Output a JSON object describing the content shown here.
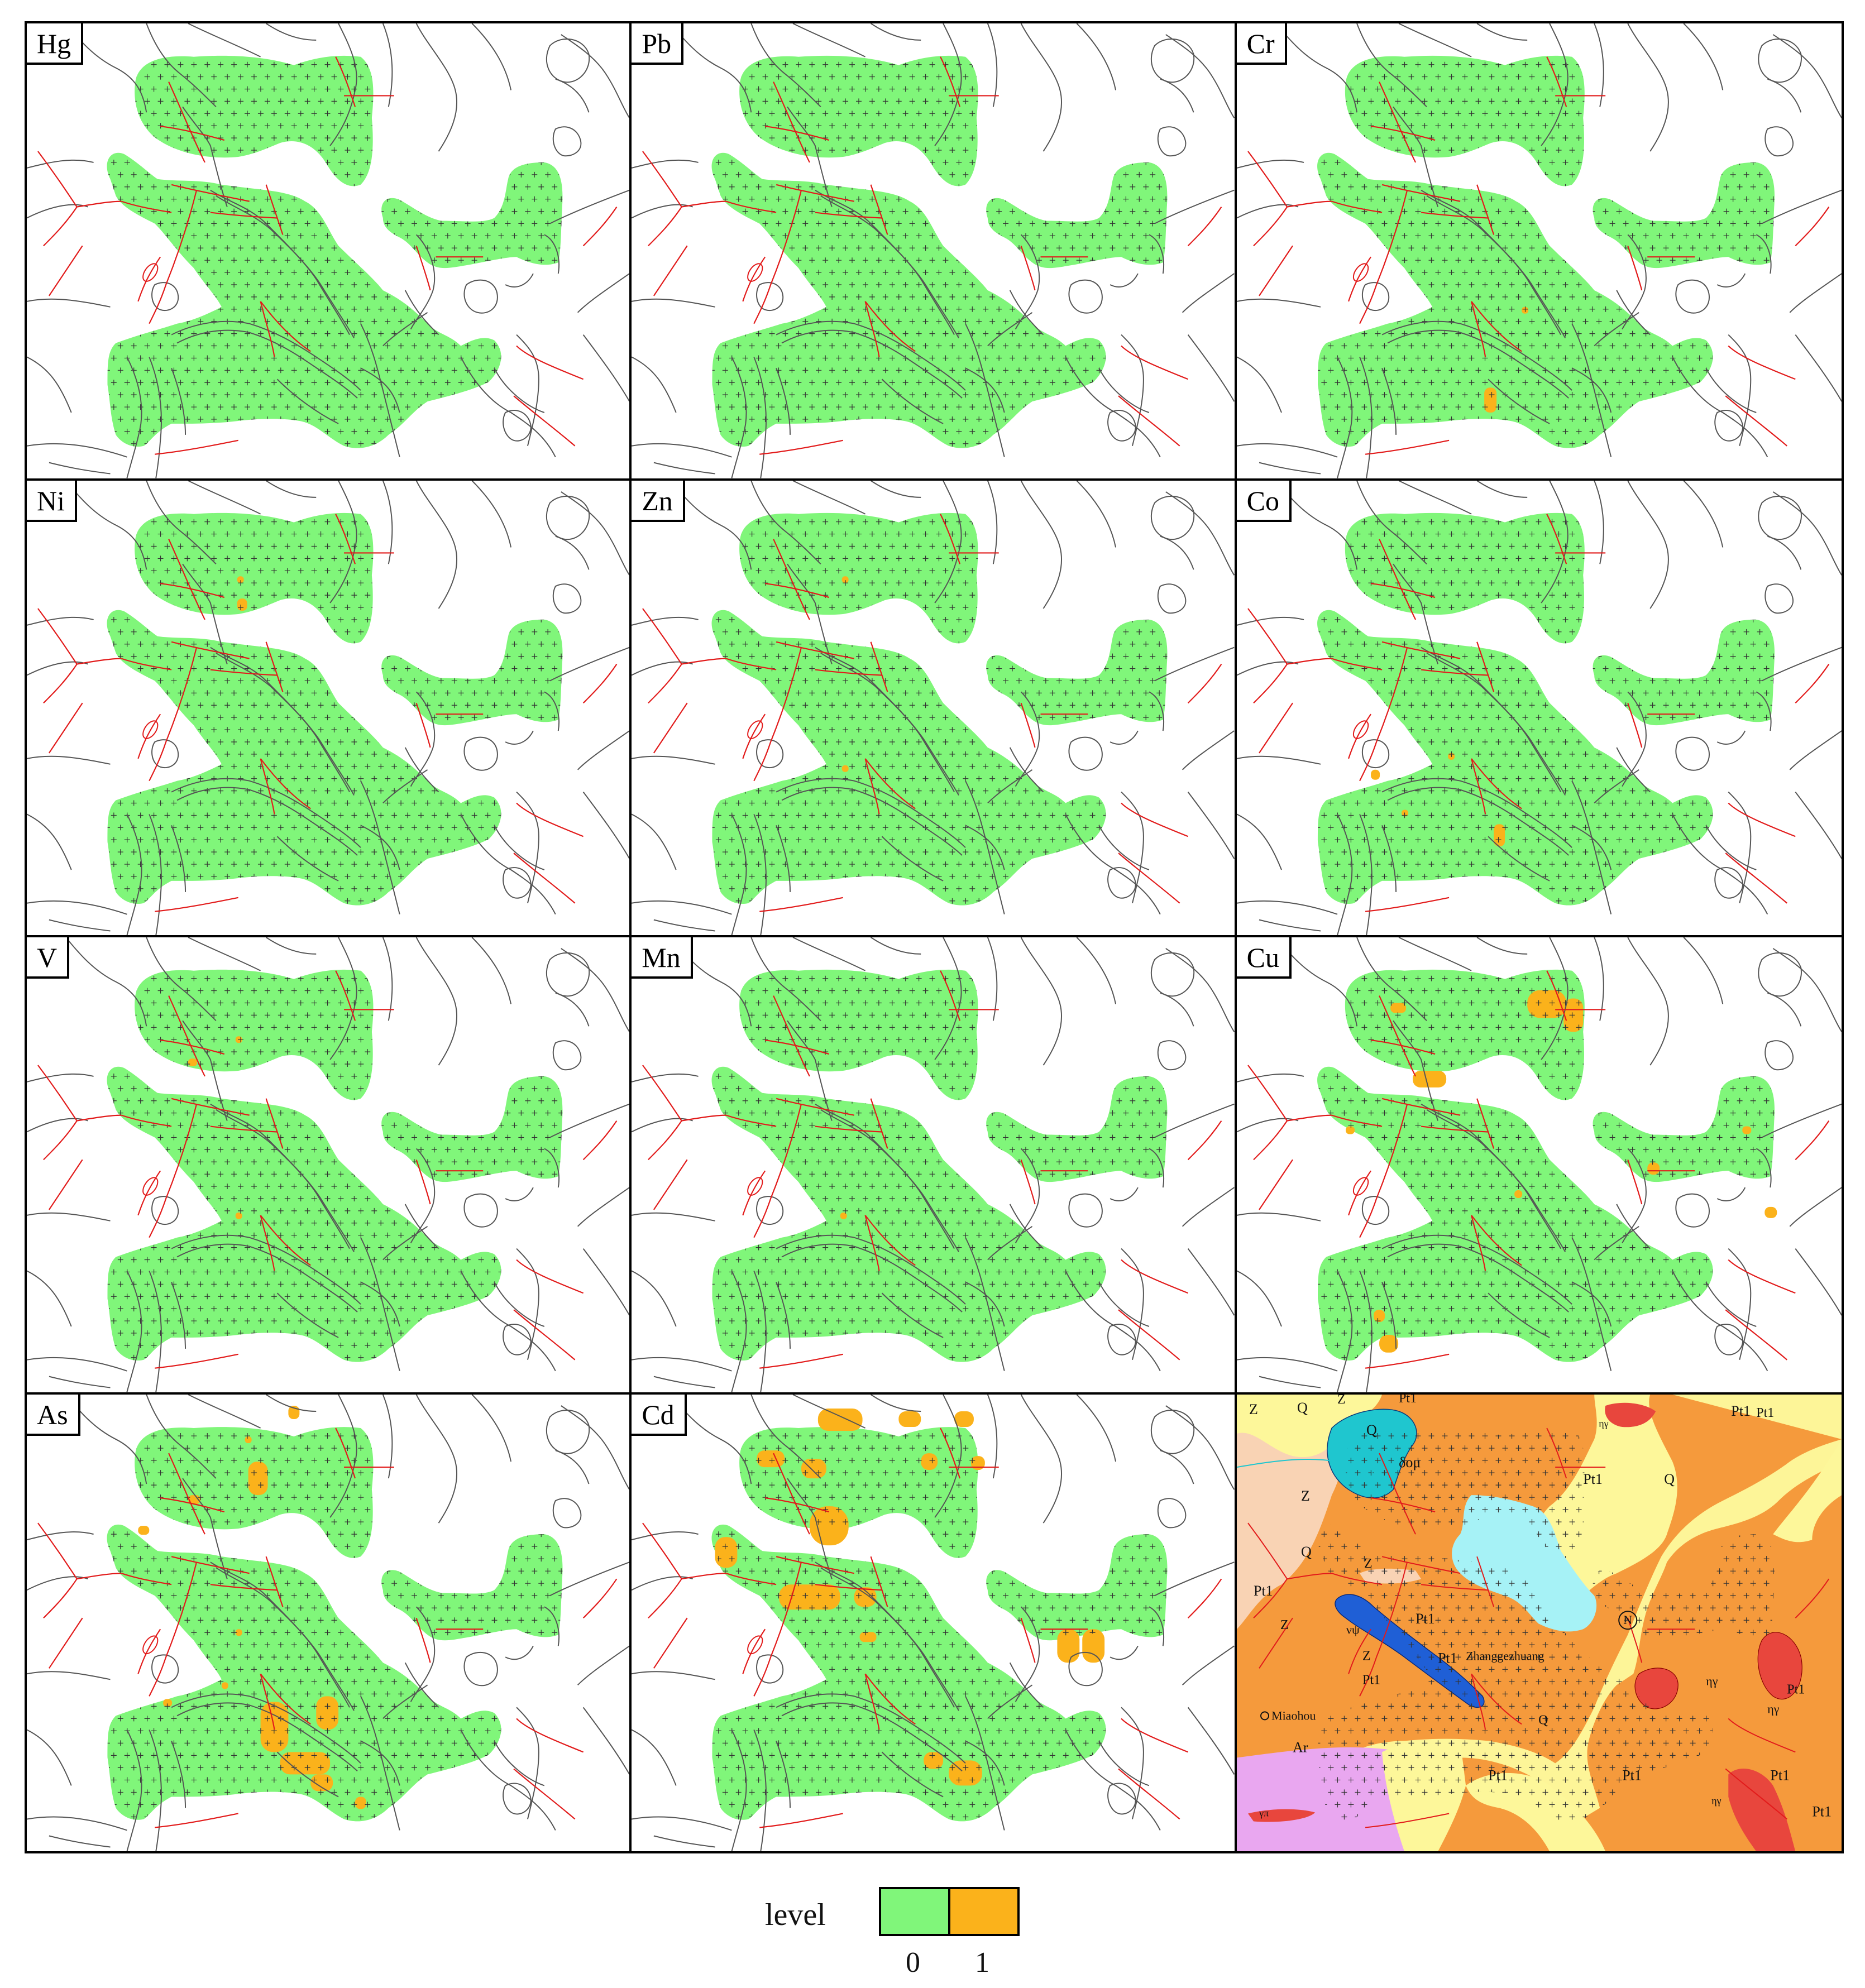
{
  "colors": {
    "level0": "#80f67a",
    "level1": "#fbb21b",
    "fault": "#e21b1b",
    "contour": "#555555",
    "Q": "#fdf79a",
    "Pt1": "#f59a3c",
    "Z": "#f9d3b4",
    "Ar": "#e9a7f0",
    "eta_gamma": "#e8463d",
    "delta_o_mu": "#1fc6cf",
    "v_psi": "#1f5fd6",
    "water": "#a6f2f6"
  },
  "panels": [
    {
      "label": "Hg",
      "anomalies": []
    },
    {
      "label": "Pb",
      "anomalies": []
    },
    {
      "label": "Cr",
      "anomalies": [
        [
          510,
          510,
          12,
          12
        ],
        [
          443,
          655,
          22,
          45
        ]
      ]
    },
    {
      "label": "Ni",
      "anomalies": [
        [
          378,
          172,
          12,
          12
        ],
        [
          378,
          212,
          18,
          22
        ]
      ]
    },
    {
      "label": "Zn",
      "anomalies": [
        [
          378,
          172,
          12,
          12
        ],
        [
          378,
          512,
          12,
          12
        ]
      ]
    },
    {
      "label": "Co",
      "anomalies": [
        [
          378,
          490,
          12,
          12
        ],
        [
          240,
          520,
          16,
          18
        ],
        [
          295,
          592,
          12,
          12
        ],
        [
          460,
          618,
          20,
          40
        ]
      ]
    },
    {
      "label": "V",
      "anomalies": [
        [
          375,
          178,
          12,
          12
        ],
        [
          290,
          218,
          16,
          14
        ],
        [
          375,
          495,
          12,
          12
        ]
      ]
    },
    {
      "label": "Mn",
      "anomalies": [
        [
          375,
          495,
          12,
          12
        ]
      ]
    },
    {
      "label": "Cu",
      "anomalies": [
        [
          275,
          118,
          28,
          18
        ],
        [
          520,
          95,
          70,
          50
        ],
        [
          585,
          110,
          35,
          60
        ],
        [
          315,
          240,
          60,
          30
        ],
        [
          195,
          340,
          16,
          14
        ],
        [
          905,
          340,
          16,
          14
        ],
        [
          735,
          405,
          22,
          22
        ],
        [
          497,
          455,
          14,
          14
        ],
        [
          945,
          485,
          22,
          20
        ],
        [
          245,
          670,
          20,
          22
        ],
        [
          255,
          715,
          34,
          32
        ]
      ]
    },
    {
      "label": "As",
      "anomalies": [
        [
          470,
          20,
          20,
          24
        ],
        [
          392,
          75,
          12,
          12
        ],
        [
          398,
          120,
          35,
          60
        ],
        [
          290,
          180,
          22,
          16
        ],
        [
          200,
          235,
          20,
          16
        ],
        [
          375,
          420,
          12,
          12
        ],
        [
          350,
          515,
          12,
          12
        ],
        [
          245,
          545,
          16,
          14
        ],
        [
          420,
          550,
          50,
          90
        ],
        [
          520,
          540,
          40,
          60
        ],
        [
          455,
          640,
          90,
          40
        ],
        [
          510,
          680,
          40,
          30
        ],
        [
          590,
          720,
          20,
          22
        ]
      ]
    },
    {
      "label": "Cd",
      "anomalies": [
        [
          335,
          25,
          80,
          40
        ],
        [
          480,
          30,
          40,
          28
        ],
        [
          580,
          30,
          35,
          28
        ],
        [
          225,
          100,
          50,
          30
        ],
        [
          305,
          115,
          45,
          35
        ],
        [
          520,
          105,
          30,
          30
        ],
        [
          610,
          110,
          25,
          25
        ],
        [
          320,
          200,
          70,
          70
        ],
        [
          150,
          255,
          40,
          55
        ],
        [
          265,
          340,
          110,
          45
        ],
        [
          400,
          345,
          40,
          35
        ],
        [
          410,
          425,
          30,
          18
        ],
        [
          765,
          420,
          40,
          60
        ],
        [
          810,
          420,
          40,
          60
        ],
        [
          525,
          640,
          35,
          30
        ],
        [
          570,
          655,
          60,
          45
        ]
      ]
    },
    {
      "label": "",
      "anomalies": []
    }
  ],
  "geology": {
    "labels": [
      "Z",
      "Q",
      "Z",
      "Pt1",
      "Pt1",
      "ηγ",
      "Pt1",
      "Q",
      "δoμ",
      "Pt1",
      "Q",
      "Z",
      "Q",
      "Pt1",
      "Z",
      "Z",
      "Pt1",
      "νψ",
      "Pt1",
      "Pt1",
      "N",
      "Z",
      "Zhanggezhuang",
      "ηγ",
      "Pt1",
      "ηγ",
      "Miaohou",
      "Q",
      "Ar",
      "Pt1",
      "Pt1",
      "Pt1",
      "ηγ",
      "γπ",
      "Pt1"
    ]
  },
  "legend": {
    "title": "level",
    "items": [
      {
        "value": "0",
        "color": "#80f67a"
      },
      {
        "value": "1",
        "color": "#fbb21b"
      }
    ]
  }
}
